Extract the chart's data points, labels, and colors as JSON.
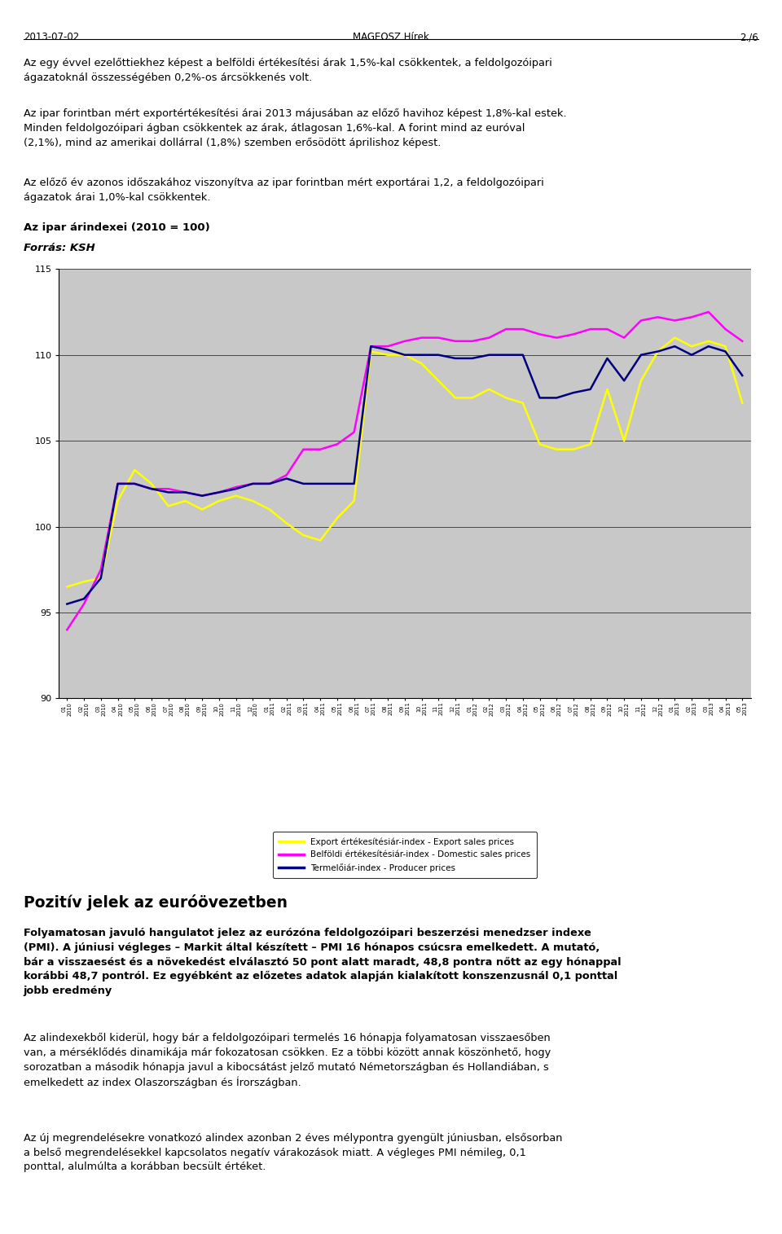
{
  "header_left": "2013-07-02",
  "header_center": "MAGEOSZ Hírek",
  "header_right": "2./6",
  "para1": "Az egy évvel ezelőttiekhez képest a belföldi értékesítési árak 1,5%-kal csökkentek, a feldolgozóipari ágazatoknál összességében 0,2%-os árcsökkenés volt.",
  "para2": "Az ipar forintban mért exportértékesítési árai 2013 májusában az előző havihoz képest 1,8%-kal estek. Minden feldolgozóipari ágban csökkentek az árak, átlagosan 1,6%-kal. A forint mind az euróval (2,1%), mind az amerikai dollárral (1,8%) szemben erősödött áprilishoz képest.",
  "para3": "Az előző év azonos időszakához viszonyítva az ipar forintban mért exportárai 1,2, a feldolgozóipari ágazatok árai 1,0%-kal csökkentek.",
  "chart_title": "Az ipar árindexei (2010 = 100)",
  "chart_source": "Forrás: KSH",
  "section_title": "Pozitív jelek az euróövezetben",
  "section_bold": "Folyamatosan javuló hangulatot jelez az eurózóna feldolgozóipari beszerzési menedzser indexe (PMI). A júniusi végleges – Markit által készített – PMI 16 hónapos csúcsra emelkedett. A mutató, bár a visszaesést és a növekedést elválasztó 50 pont alatt maradt, 48,8 pontra nőtt az egy hónappal korábbi 48,7 pontról. Ez egyébként az előzetes adatok alapján kialakított konszenzusnál 0,1 ponttal jobb eredmény",
  "para4": "Az alindexekből kiderül, hogy bár a feldolgozóipari termelés 16 hónapja folyamatosan visszaesőben van, a mérséklődés dinamikája már fokozatosan csökken. Ez a többi között annak köszönhető, hogy sorozatban a második hónapja javul a kibocsátást jelző mutató Németországban és Hollandiában, s emelkedett az index Olaszországban és Írországban.",
  "para5": "Az új megrendelésekre vonatkozó alindex azonban 2 éves mélypontra gyengült júniusban, elsősorban a belső megrendelésekkel kapcsolatos negatív várakozások miatt. A végleges PMI némileg, 0,1 ponttal, alulmúlta a korábban becsült értéket.",
  "x_months": [
    "01",
    "02",
    "03",
    "04",
    "05",
    "06",
    "07",
    "08",
    "09",
    "10",
    "11",
    "12",
    "01",
    "02",
    "03",
    "04",
    "05",
    "06",
    "07",
    "08",
    "09",
    "10",
    "11",
    "12",
    "01",
    "02",
    "03",
    "04",
    "05",
    "06",
    "07",
    "08",
    "09",
    "10",
    "11",
    "12",
    "01",
    "02",
    "03",
    "04",
    "05"
  ],
  "x_years": [
    "2010",
    "2010",
    "2010",
    "2010",
    "2010",
    "2010",
    "2010",
    "2010",
    "2010",
    "2010",
    "2010",
    "2010",
    "2011",
    "2011",
    "2011",
    "2011",
    "2011",
    "2011",
    "2011",
    "2011",
    "2011",
    "2011",
    "2011",
    "2011",
    "2012",
    "2012",
    "2012",
    "2012",
    "2012",
    "2012",
    "2012",
    "2012",
    "2012",
    "2012",
    "2012",
    "2012",
    "2013",
    "2013",
    "2013",
    "2013",
    "2013"
  ],
  "export_values": [
    96.5,
    96.8,
    97.0,
    101.5,
    103.3,
    102.5,
    101.2,
    101.5,
    101.0,
    101.5,
    101.8,
    101.5,
    101.0,
    100.2,
    99.5,
    99.2,
    100.5,
    101.5,
    110.2,
    110.0,
    110.0,
    109.5,
    108.5,
    107.5,
    107.5,
    108.0,
    107.5,
    107.2,
    104.8,
    104.5,
    104.5,
    104.8,
    108.0,
    105.0,
    108.5,
    110.2,
    111.0,
    110.5,
    110.8,
    110.5,
    107.2
  ],
  "domestic_values": [
    94.0,
    95.5,
    97.5,
    102.5,
    102.5,
    102.2,
    102.2,
    102.0,
    101.8,
    102.0,
    102.3,
    102.5,
    102.5,
    103.0,
    104.5,
    104.5,
    104.8,
    105.5,
    110.5,
    110.5,
    110.8,
    111.0,
    111.0,
    110.8,
    110.8,
    111.0,
    111.5,
    111.5,
    111.2,
    111.0,
    111.2,
    111.5,
    111.5,
    111.0,
    112.0,
    112.2,
    112.0,
    112.2,
    112.5,
    111.5,
    110.8
  ],
  "producer_values": [
    95.5,
    95.8,
    97.0,
    102.5,
    102.5,
    102.2,
    102.0,
    102.0,
    101.8,
    102.0,
    102.2,
    102.5,
    102.5,
    102.8,
    102.5,
    102.5,
    102.5,
    102.5,
    110.5,
    110.3,
    110.0,
    110.0,
    110.0,
    109.8,
    109.8,
    110.0,
    110.0,
    110.0,
    107.5,
    107.5,
    107.8,
    108.0,
    109.8,
    108.5,
    110.0,
    110.2,
    110.5,
    110.0,
    110.5,
    110.2,
    108.8
  ],
  "export_color": "#ffff00",
  "domestic_color": "#ff00ff",
  "producer_color": "#000080",
  "chart_bg": "#c8c8c8",
  "ylim": [
    90,
    115
  ],
  "yticks": [
    90,
    95,
    100,
    105,
    110,
    115
  ],
  "legend_export": "Export értékesítésiár-index - Export sales prices",
  "legend_domestic": "Belföldi értékesítésiár-index - Domestic sales prices",
  "legend_producer": "Termelőiár-index - Producer prices"
}
